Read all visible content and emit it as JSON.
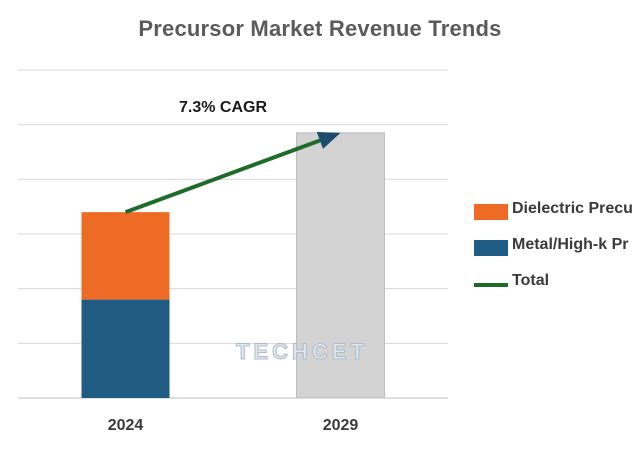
{
  "chart_data": {
    "type": "bar",
    "title": "Precursor Market Revenue Trends",
    "categories": [
      "2024",
      "2029"
    ],
    "series": [
      {
        "name": "Dielectric Precursors",
        "values": [
          1.6,
          null
        ],
        "color": "#ee6b26"
      },
      {
        "name": "Metal/High-k Precursors",
        "values": [
          1.8,
          null
        ],
        "color": "#1f5b82"
      },
      {
        "name": "Total",
        "values": [
          3.4,
          4.85
        ],
        "color": "#9e9e9e"
      }
    ],
    "trend": {
      "name": "Total",
      "label": "7.3% CAGR",
      "color": "#1e6b2a",
      "from": 3.4,
      "to": 4.85
    },
    "ylim": [
      0,
      6
    ],
    "grid": true,
    "legend_position": "right",
    "xlabel": "",
    "ylabel": ""
  },
  "legend": {
    "items": [
      {
        "label": "Dielectric Precu",
        "type": "swatch",
        "color": "#ee6b26"
      },
      {
        "label": "Metal/High-k Pr",
        "type": "swatch",
        "color": "#1f5b82"
      },
      {
        "label": "Total",
        "type": "line",
        "color": "#1e6b2a"
      }
    ]
  },
  "watermark": "TECHCET"
}
